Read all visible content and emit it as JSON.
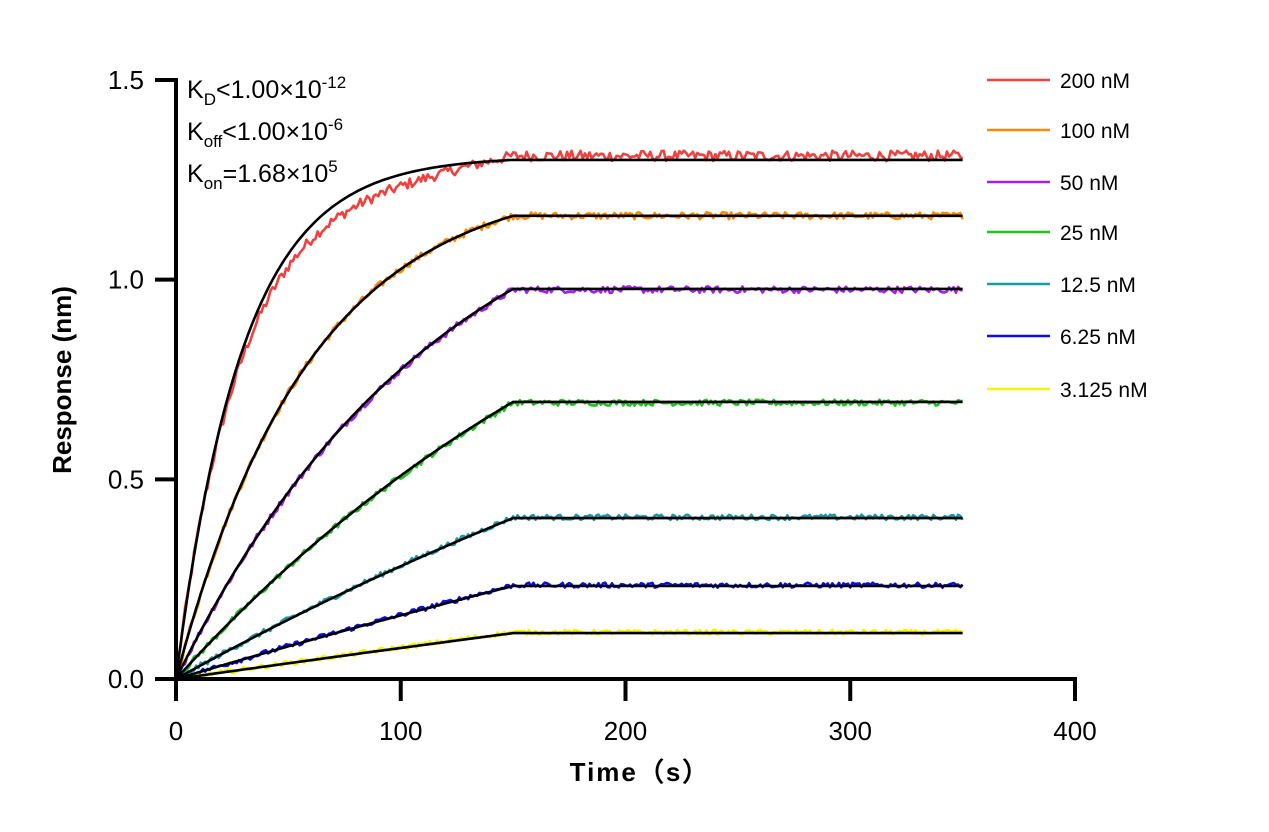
{
  "chart_data": {
    "type": "line",
    "xlabel": "Time（s）",
    "ylabel": "Response (nm)",
    "xlim": [
      0,
      400
    ],
    "ylim": [
      0,
      1.5
    ],
    "xticks": [
      "0",
      "100",
      "200",
      "300",
      "400"
    ],
    "yticks": [
      "0.0",
      "0.5",
      "1.0",
      "1.5"
    ],
    "grid": false,
    "legend_position": "right",
    "association_end_s": 150,
    "dissociation_end_s": 350,
    "fit_color": "#000000",
    "annotations": {
      "kd": {
        "main": "K",
        "sub": "D",
        "rel": "<1.00×10",
        "exp": "-12"
      },
      "koff": {
        "main": "K",
        "sub": "off",
        "rel": "<1.00×10",
        "exp": "-6"
      },
      "kon": {
        "main": "K",
        "sub": "on",
        "rel": "=1.68×10",
        "exp": "5"
      }
    },
    "kon_value": 168000,
    "series": [
      {
        "name": "200 nM",
        "concentration_nM": 200,
        "color": "#f2403f",
        "plateau_fit": 1.3,
        "plateau_data": 1.31
      },
      {
        "name": "100 nM",
        "concentration_nM": 100,
        "color": "#ff8a00",
        "plateau_fit": 1.16,
        "plateau_data": 1.16
      },
      {
        "name": "50 nM",
        "concentration_nM": 50,
        "color": "#a41ff0",
        "plateau_fit": 0.977,
        "plateau_data": 0.975
      },
      {
        "name": "25 nM",
        "concentration_nM": 25,
        "color": "#1fc41f",
        "plateau_fit": 0.694,
        "plateau_data": 0.692
      },
      {
        "name": "12.5 nM",
        "concentration_nM": 12.5,
        "color": "#1a9ba8",
        "plateau_fit": 0.403,
        "plateau_data": 0.405
      },
      {
        "name": "6.25 nM",
        "concentration_nM": 6.25,
        "color": "#0a0af5",
        "plateau_fit": 0.233,
        "plateau_data": 0.235
      },
      {
        "name": "3.125 nM",
        "concentration_nM": 3.125,
        "color": "#f5f500",
        "plateau_fit": 0.115,
        "plateau_data": 0.117
      }
    ]
  }
}
